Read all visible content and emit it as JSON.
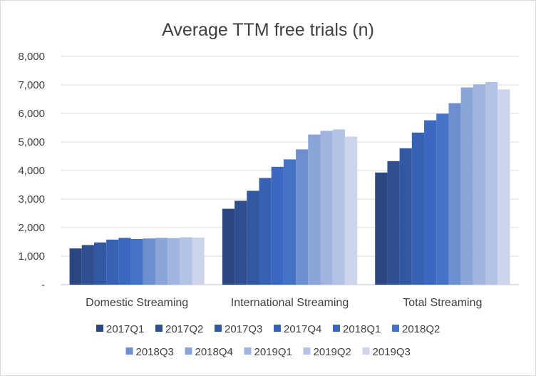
{
  "chart_data": {
    "type": "bar",
    "title": "Average TTM free trials (n)",
    "xlabel": "",
    "ylabel": "",
    "ylim": [
      0,
      8000
    ],
    "y_ticks": [
      0,
      1000,
      2000,
      3000,
      4000,
      5000,
      6000,
      7000,
      8000
    ],
    "y_tick_labels": [
      "-",
      "1,000",
      "2,000",
      "3,000",
      "4,000",
      "5,000",
      "6,000",
      "7,000",
      "8,000"
    ],
    "grid": true,
    "legend_position": "bottom",
    "categories": [
      "Domestic Streaming",
      "International Streaming",
      "Total Streaming"
    ],
    "series": [
      {
        "name": "2017Q1",
        "color": "#2b4781",
        "values": [
          1270,
          2660,
          3930
        ]
      },
      {
        "name": "2017Q2",
        "color": "#2f4f91",
        "values": [
          1390,
          2940,
          4330
        ]
      },
      {
        "name": "2017Q3",
        "color": "#3358a2",
        "values": [
          1480,
          3290,
          4780
        ]
      },
      {
        "name": "2017Q4",
        "color": "#3761b3",
        "values": [
          1580,
          3740,
          5330
        ]
      },
      {
        "name": "2018Q1",
        "color": "#3b69c2",
        "values": [
          1640,
          4130,
          5760
        ]
      },
      {
        "name": "2018Q2",
        "color": "#4472c4",
        "values": [
          1600,
          4390,
          5990
        ]
      },
      {
        "name": "2018Q3",
        "color": "#6d8fd0",
        "values": [
          1620,
          4740,
          6360
        ]
      },
      {
        "name": "2018Q4",
        "color": "#8aa5d8",
        "values": [
          1640,
          5260,
          6910
        ]
      },
      {
        "name": "2019Q1",
        "color": "#a0b4de",
        "values": [
          1630,
          5390,
          7020
        ]
      },
      {
        "name": "2019Q2",
        "color": "#b3c3e5",
        "values": [
          1660,
          5440,
          7100
        ]
      },
      {
        "name": "2019Q3",
        "color": "#ccd5ec",
        "values": [
          1650,
          5190,
          6840
        ]
      }
    ],
    "colors": {
      "gridline": "#d9d9d9",
      "axis": "#bfbfbf",
      "text": "#404040"
    }
  }
}
